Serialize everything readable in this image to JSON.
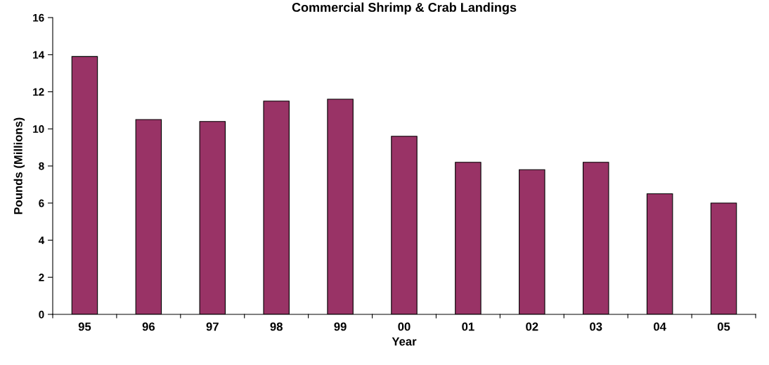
{
  "chart_data": {
    "type": "bar",
    "title": "Commercial Shrimp & Crab Landings",
    "xlabel": "Year",
    "ylabel": "Pounds (Millions)",
    "categories": [
      "95",
      "96",
      "97",
      "98",
      "99",
      "00",
      "01",
      "02",
      "03",
      "04",
      "05"
    ],
    "values": [
      13.9,
      10.5,
      10.4,
      11.5,
      11.6,
      9.6,
      8.2,
      7.8,
      8.2,
      6.5,
      6.0
    ],
    "color": "#993366",
    "ylim": [
      0,
      16
    ],
    "yticks": [
      0,
      2,
      4,
      6,
      8,
      10,
      12,
      14,
      16
    ],
    "grid": false,
    "legend": false
  }
}
